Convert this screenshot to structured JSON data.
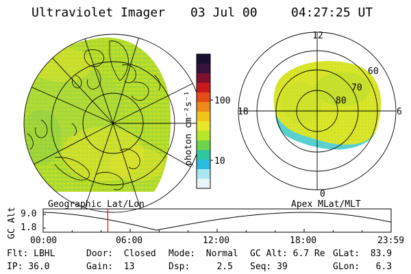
{
  "header": {
    "title": "Ultraviolet Imager",
    "date": "03 Jul 00",
    "time": "04:27:25 UT"
  },
  "left_panel": {
    "caption": "Geographic Lat/Lon"
  },
  "right_panel": {
    "caption": "Apex MLat/MLT",
    "mlt_labels": {
      "top": "12",
      "left": "18",
      "right": "6",
      "bottom": "0"
    },
    "lat_rings": [
      "60",
      "70",
      "80"
    ]
  },
  "colorbar": {
    "unit_label": "photon cm⁻²s⁻¹",
    "tick_labels": [
      "100",
      "10"
    ],
    "colors_top_to_bottom": [
      "#1a0f33",
      "#3a1040",
      "#801030",
      "#c81a1a",
      "#e84a1a",
      "#f08a1a",
      "#f0c41a",
      "#e6e62a",
      "#b4e62a",
      "#6cd44a",
      "#2ec8a0",
      "#28bce0",
      "#a8e8f0",
      "#e8f4f8"
    ]
  },
  "timeline": {
    "y_axis_label": "GC Alt",
    "y_ticks": [
      "9.0",
      "1.8"
    ],
    "x_ticks": [
      "00:00",
      "06:00",
      "12:00",
      "18:00",
      "23:59"
    ],
    "marker_hours": 4.46,
    "marker_color": "#ff0000"
  },
  "status": {
    "flt_label": "Flt:",
    "flt_value": "LBHL",
    "ip_label": "IP:",
    "ip_value": "36.0",
    "door_label": "Door:",
    "door_value": "Closed",
    "gain_label": "Gain:",
    "gain_value": "13",
    "mode_label": "Mode:",
    "mode_value": "Normal",
    "dsp_label": "Dsp:",
    "dsp_value": "2.5",
    "gcalt_label": "GC Alt:",
    "gcalt_value": "6.7 Re",
    "seq_label": "Seq:",
    "seq_value": "39",
    "glat_label": "GLat:",
    "glat_value": "83.9",
    "glon_label": "GLon:",
    "glon_value": "6.3"
  },
  "colors": {
    "image_base": "#b4dc2a",
    "image_dark": "#7ac83a",
    "image_yellow": "#e8e62a",
    "image_cyan": "#3cc8c8",
    "lines": "#000000"
  }
}
